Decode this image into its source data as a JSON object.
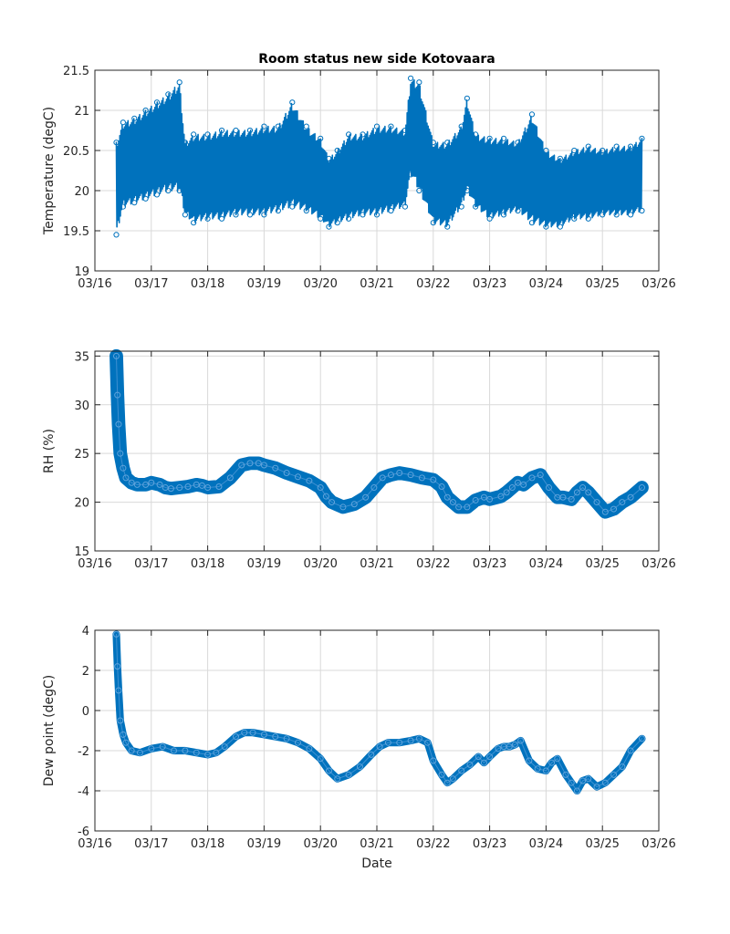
{
  "figure_title": "Room status new side Kotovaara",
  "colors": {
    "series": "#0072bd",
    "grid": "#d9d9d9",
    "axis": "#262626"
  },
  "chart_data": [
    {
      "type": "scatter",
      "title": "Room status new side Kotovaara",
      "xlabel": "",
      "ylabel": "Temperature (degC)",
      "xlim": [
        0,
        10
      ],
      "ylim": [
        19,
        21.5
      ],
      "xticks": [
        0,
        1,
        2,
        3,
        4,
        5,
        6,
        7,
        8,
        9,
        10
      ],
      "xtick_labels": [
        "03/16",
        "03/17",
        "03/18",
        "03/19",
        "03/20",
        "03/21",
        "03/22",
        "03/23",
        "03/24",
        "03/25",
        "03/26"
      ],
      "yticks": [
        19,
        19.5,
        20,
        20.5,
        21,
        21.5
      ],
      "ytick_labels": [
        "19",
        "19.5",
        "20",
        "20.5",
        "21",
        "21.5"
      ],
      "grid": true,
      "series": [
        {
          "name": "Temperature",
          "x": [
            0.38,
            0.5,
            0.7,
            0.9,
            1.1,
            1.3,
            1.5,
            1.6,
            1.75,
            2.0,
            2.25,
            2.5,
            2.75,
            3.0,
            3.25,
            3.5,
            3.75,
            4.0,
            4.15,
            4.3,
            4.5,
            4.75,
            5.0,
            5.25,
            5.5,
            5.6,
            5.75,
            6.0,
            6.25,
            6.5,
            6.6,
            6.75,
            7.0,
            7.25,
            7.5,
            7.75,
            8.0,
            8.25,
            8.5,
            8.75,
            9.0,
            9.25,
            9.5,
            9.7
          ],
          "y_min": [
            19.45,
            19.8,
            19.85,
            19.9,
            19.95,
            20.0,
            20.0,
            19.7,
            19.6,
            19.65,
            19.65,
            19.7,
            19.7,
            19.7,
            19.75,
            19.8,
            19.75,
            19.65,
            19.55,
            19.6,
            19.65,
            19.7,
            19.7,
            19.75,
            19.8,
            20.2,
            20.0,
            19.6,
            19.55,
            19.8,
            20.0,
            19.8,
            19.65,
            19.7,
            19.75,
            19.6,
            19.55,
            19.55,
            19.65,
            19.65,
            19.7,
            19.7,
            19.7,
            19.75
          ],
          "y_max": [
            20.6,
            20.85,
            20.9,
            21.0,
            21.1,
            21.2,
            21.35,
            20.6,
            20.7,
            20.7,
            20.75,
            20.75,
            20.75,
            20.8,
            20.8,
            21.1,
            20.8,
            20.65,
            20.4,
            20.5,
            20.7,
            20.7,
            20.8,
            20.8,
            20.75,
            21.4,
            21.35,
            20.6,
            20.6,
            20.8,
            21.15,
            20.7,
            20.65,
            20.65,
            20.6,
            20.95,
            20.5,
            20.4,
            20.5,
            20.55,
            20.5,
            20.55,
            20.55,
            20.65
          ]
        }
      ]
    },
    {
      "type": "scatter",
      "title": "",
      "xlabel": "",
      "ylabel": "RH (%)",
      "xlim": [
        0,
        10
      ],
      "ylim": [
        15,
        35.5
      ],
      "xticks": [
        0,
        1,
        2,
        3,
        4,
        5,
        6,
        7,
        8,
        9,
        10
      ],
      "xtick_labels": [
        "03/16",
        "03/17",
        "03/18",
        "03/19",
        "03/20",
        "03/21",
        "03/22",
        "03/23",
        "03/24",
        "03/25",
        "03/26"
      ],
      "yticks": [
        15,
        20,
        25,
        30,
        35
      ],
      "ytick_labels": [
        "15",
        "20",
        "25",
        "30",
        "35"
      ],
      "grid": true,
      "series": [
        {
          "name": "RH",
          "x": [
            0.38,
            0.4,
            0.42,
            0.45,
            0.5,
            0.55,
            0.65,
            0.75,
            0.9,
            1.0,
            1.15,
            1.25,
            1.35,
            1.5,
            1.65,
            1.8,
            1.9,
            2.0,
            2.2,
            2.4,
            2.6,
            2.75,
            2.9,
            3.0,
            3.2,
            3.4,
            3.6,
            3.8,
            4.0,
            4.1,
            4.2,
            4.4,
            4.6,
            4.8,
            4.95,
            5.1,
            5.25,
            5.4,
            5.6,
            5.8,
            6.0,
            6.15,
            6.25,
            6.35,
            6.45,
            6.6,
            6.75,
            6.9,
            7.0,
            7.2,
            7.3,
            7.4,
            7.5,
            7.6,
            7.75,
            7.9,
            8.05,
            8.2,
            8.3,
            8.45,
            8.55,
            8.65,
            8.75,
            8.9,
            9.05,
            9.2,
            9.35,
            9.5,
            9.7
          ],
          "y": [
            35.0,
            31.0,
            28.0,
            25.0,
            23.5,
            22.5,
            22.0,
            21.8,
            21.8,
            22.0,
            21.8,
            21.5,
            21.4,
            21.5,
            21.6,
            21.8,
            21.7,
            21.5,
            21.6,
            22.5,
            23.8,
            24.0,
            24.0,
            23.8,
            23.5,
            23.0,
            22.6,
            22.2,
            21.5,
            20.6,
            20.0,
            19.5,
            19.8,
            20.5,
            21.5,
            22.5,
            22.8,
            23.0,
            22.8,
            22.5,
            22.3,
            21.6,
            20.5,
            20.0,
            19.5,
            19.5,
            20.2,
            20.5,
            20.3,
            20.6,
            21.0,
            21.5,
            22.0,
            21.8,
            22.5,
            22.8,
            21.5,
            20.5,
            20.5,
            20.3,
            21.0,
            21.5,
            21.0,
            20.0,
            19.0,
            19.3,
            20.0,
            20.5,
            21.5
          ],
          "y_spread": 1.2
        }
      ]
    },
    {
      "type": "scatter",
      "title": "",
      "xlabel": "Date",
      "ylabel": "Dew point (degC)",
      "xlim": [
        0,
        10
      ],
      "ylim": [
        -6,
        4
      ],
      "xticks": [
        0,
        1,
        2,
        3,
        4,
        5,
        6,
        7,
        8,
        9,
        10
      ],
      "xtick_labels": [
        "03/16",
        "03/17",
        "03/18",
        "03/19",
        "03/20",
        "03/21",
        "03/22",
        "03/23",
        "03/24",
        "03/25",
        "03/26"
      ],
      "yticks": [
        -6,
        -4,
        -2,
        0,
        2,
        4
      ],
      "ytick_labels": [
        "-6",
        "-4",
        "-2",
        "0",
        "2",
        "4"
      ],
      "grid": true,
      "series": [
        {
          "name": "Dew point",
          "x": [
            0.38,
            0.4,
            0.42,
            0.45,
            0.5,
            0.55,
            0.65,
            0.8,
            1.0,
            1.2,
            1.4,
            1.6,
            1.8,
            2.0,
            2.15,
            2.3,
            2.5,
            2.65,
            2.8,
            3.0,
            3.2,
            3.4,
            3.6,
            3.8,
            4.0,
            4.15,
            4.3,
            4.5,
            4.7,
            4.9,
            5.05,
            5.2,
            5.4,
            5.6,
            5.75,
            5.9,
            6.0,
            6.15,
            6.25,
            6.35,
            6.5,
            6.65,
            6.8,
            6.9,
            7.0,
            7.15,
            7.25,
            7.35,
            7.45,
            7.55,
            7.7,
            7.85,
            8.0,
            8.1,
            8.2,
            8.35,
            8.45,
            8.55,
            8.65,
            8.75,
            8.9,
            9.05,
            9.2,
            9.35,
            9.5,
            9.7
          ],
          "y": [
            3.8,
            2.2,
            1.0,
            -0.5,
            -1.2,
            -1.6,
            -2.0,
            -2.1,
            -1.9,
            -1.8,
            -2.0,
            -2.0,
            -2.1,
            -2.2,
            -2.1,
            -1.8,
            -1.3,
            -1.1,
            -1.1,
            -1.2,
            -1.3,
            -1.4,
            -1.6,
            -1.9,
            -2.4,
            -3.0,
            -3.4,
            -3.2,
            -2.8,
            -2.2,
            -1.8,
            -1.6,
            -1.6,
            -1.5,
            -1.4,
            -1.6,
            -2.5,
            -3.2,
            -3.6,
            -3.4,
            -3.0,
            -2.7,
            -2.3,
            -2.6,
            -2.3,
            -1.9,
            -1.8,
            -1.8,
            -1.7,
            -1.5,
            -2.5,
            -2.9,
            -3.0,
            -2.6,
            -2.4,
            -3.2,
            -3.6,
            -4.0,
            -3.5,
            -3.4,
            -3.8,
            -3.6,
            -3.2,
            -2.8,
            -2.0,
            -1.4
          ],
          "y_spread": 0.28
        }
      ]
    }
  ]
}
